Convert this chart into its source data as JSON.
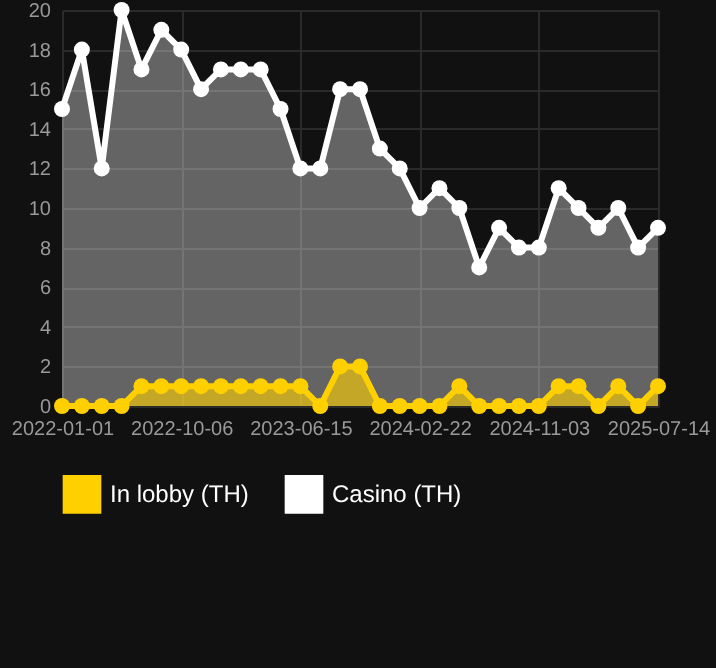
{
  "chart_data": {
    "type": "area",
    "categories": [
      "2022-01-01",
      null,
      null,
      null,
      null,
      null,
      "2022-10-06",
      null,
      null,
      null,
      null,
      null,
      "2023-06-15",
      null,
      null,
      null,
      null,
      null,
      "2024-02-22",
      null,
      null,
      null,
      null,
      null,
      "2024-11-03",
      null,
      null,
      null,
      null,
      null,
      "2025-07-14"
    ],
    "series": [
      {
        "name": "In lobby (TH)",
        "color": "#ffd000",
        "values": [
          0,
          0,
          0,
          0,
          1,
          1,
          1,
          1,
          1,
          1,
          1,
          1,
          1,
          0,
          2,
          2,
          0,
          0,
          0,
          0,
          1,
          0,
          0,
          0,
          0,
          1,
          1,
          0,
          1,
          0,
          1
        ]
      },
      {
        "name": "Casino (TH)",
        "color": "#ffffff",
        "values": [
          15,
          18,
          12,
          20,
          17,
          19,
          18,
          16,
          17,
          17,
          17,
          15,
          12,
          12,
          16,
          16,
          13,
          12,
          10,
          11,
          10,
          7,
          9,
          8,
          8,
          11,
          10,
          9,
          10,
          8,
          9
        ]
      }
    ],
    "ylim": [
      0,
      20
    ],
    "yticks": [
      0,
      2,
      4,
      6,
      8,
      10,
      12,
      14,
      16,
      18,
      20
    ],
    "grid": true,
    "legend": "bottom",
    "marker": "circle"
  }
}
